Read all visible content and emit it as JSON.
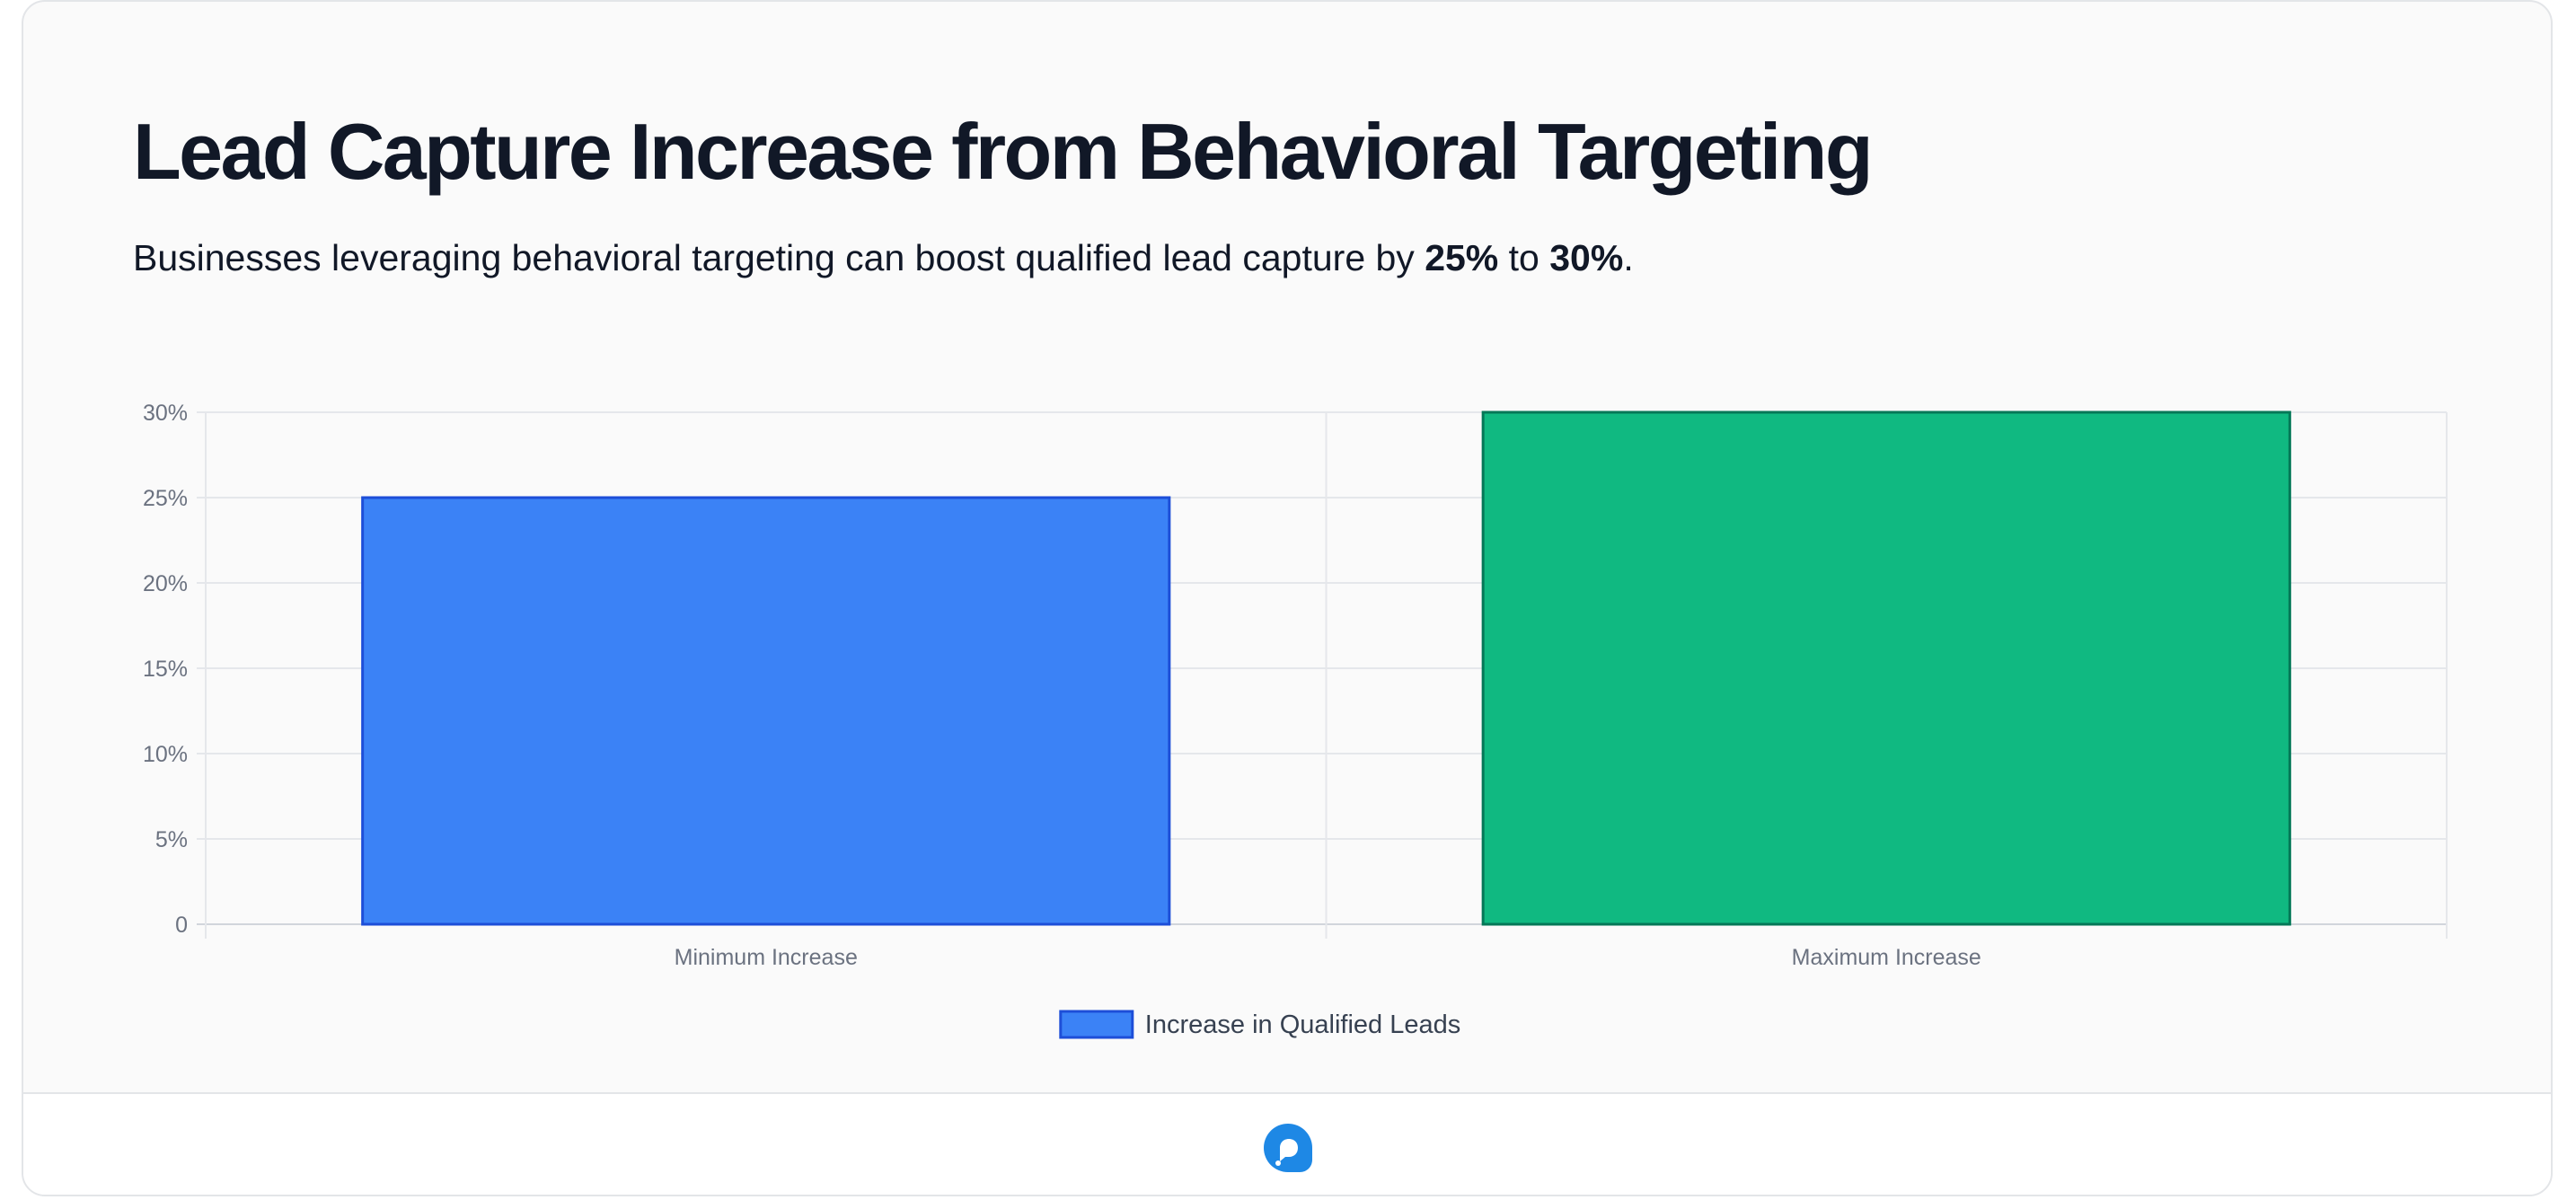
{
  "header": {
    "title": "Lead Capture Increase from Behavioral Targeting",
    "subtitle_prefix": "Businesses leveraging behavioral targeting can boost qualified lead capture by ",
    "subtitle_low": "25%",
    "subtitle_mid": " to ",
    "subtitle_high": "30%",
    "subtitle_suffix": "."
  },
  "chart_data": {
    "type": "bar",
    "categories": [
      "Minimum Increase",
      "Maximum Increase"
    ],
    "series": [
      {
        "name": "Increase in Qualified Leads",
        "values": [
          25,
          30
        ]
      }
    ],
    "bar_colors": [
      "#3b82f6",
      "#10b981"
    ],
    "bar_border_colors": [
      "#1d4ed8",
      "#047857"
    ],
    "ylim": [
      0,
      30
    ],
    "yticks": [
      0,
      5,
      10,
      15,
      20,
      25,
      30
    ],
    "ytick_labels": [
      "0",
      "5%",
      "10%",
      "15%",
      "20%",
      "25%",
      "30%"
    ],
    "xlabel": "",
    "ylabel": "",
    "grid": true,
    "legend_position": "bottom"
  },
  "footer": {
    "logo_icon": "chat-bubble-logo-icon",
    "logo_color": "#1e88e5"
  }
}
